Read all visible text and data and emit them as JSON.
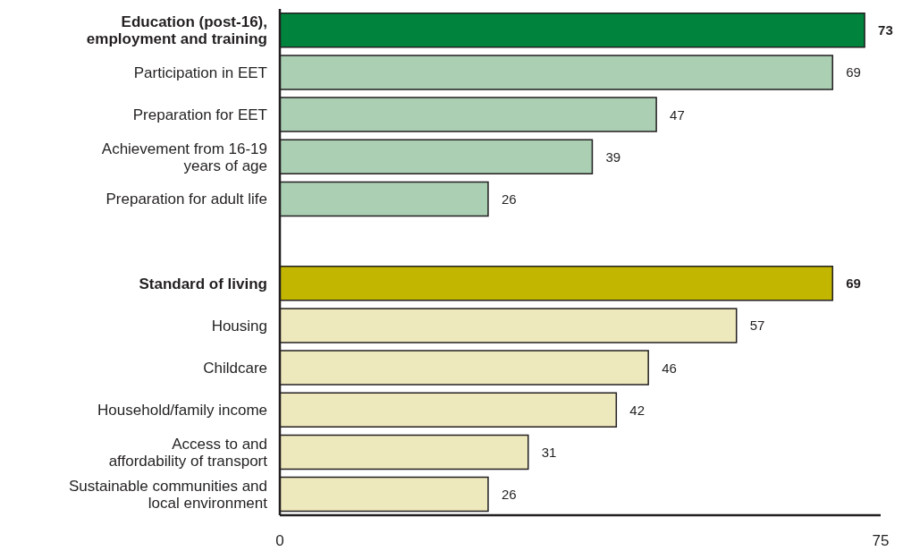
{
  "chart_data": {
    "type": "bar",
    "orientation": "horizontal",
    "categories": [
      "Education (post-16),\nemployment and training",
      "Participation in EET",
      "Preparation for EET",
      "Achievement from 16-19\nyears of age",
      "Preparation for adult life",
      null,
      "Standard of living",
      "Housing",
      "Childcare",
      "Household/family income",
      "Access to and\naffordability of transport",
      "Sustainable communities and\nlocal environment"
    ],
    "values": [
      73,
      69,
      47,
      39,
      26,
      null,
      69,
      57,
      46,
      42,
      31,
      26
    ],
    "colors": [
      "#00843d",
      "#aacfb3",
      "#aacfb3",
      "#aacfb3",
      "#aacfb3",
      null,
      "#c3b600",
      "#eee9bd",
      "#eee9bd",
      "#eee9bd",
      "#eee9bd",
      "#eee9bd"
    ],
    "xlim": [
      0,
      75
    ],
    "xticks": [
      0,
      75
    ],
    "data_labels": true,
    "grid": false
  }
}
